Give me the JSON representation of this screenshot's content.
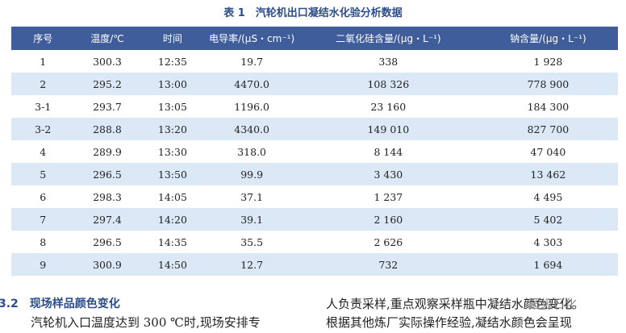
{
  "caption": "表 1　汽轮机出口凝结水化验分析数据",
  "table": {
    "header": [
      "序号",
      "温度/℃",
      "时间",
      "电导率/(μS・cm⁻¹)",
      "二氧化硅含量/(μg・L⁻¹)",
      "钠含量/(μg・L⁻¹)"
    ],
    "rows": [
      [
        "1",
        "300.3",
        "12:35",
        "19.7",
        "338",
        "1 928"
      ],
      [
        "2",
        "295.2",
        "13:00",
        "4470.0",
        "108 326",
        "778 900"
      ],
      [
        "3-1",
        "293.7",
        "13:05",
        "1196.0",
        "23 160",
        "184 300"
      ],
      [
        "3-2",
        "288.8",
        "13:20",
        "4340.0",
        "149 010",
        "827 700"
      ],
      [
        "4",
        "289.9",
        "13:30",
        "318.0",
        "8 144",
        "47 040"
      ],
      [
        "5",
        "296.5",
        "13:50",
        "99.9",
        "3 430",
        "13 462"
      ],
      [
        "6",
        "298.3",
        "14:05",
        "37.1",
        "1 237",
        "4 495"
      ],
      [
        "7",
        "297.4",
        "14:20",
        "39.1",
        "2 160",
        "5 402"
      ],
      [
        "8",
        "296.5",
        "14:35",
        "35.5",
        "2 626",
        "4 303"
      ],
      [
        "9",
        "300.9",
        "14:50",
        "12.7",
        "732",
        "1 694"
      ]
    ]
  },
  "section": {
    "heading": "3.2　现场样品颜色变化",
    "left_lines": [
      "汽轮机入口温度达到 300 ℃时,现场安排专"
    ],
    "right_lines": [
      "人负责采样,重点观察采样瓶中凝结水颜色变化。",
      "根据其他炼厂实际操作经验,凝结水颜色会呈现"
    ]
  },
  "watermark": "超级石化"
}
